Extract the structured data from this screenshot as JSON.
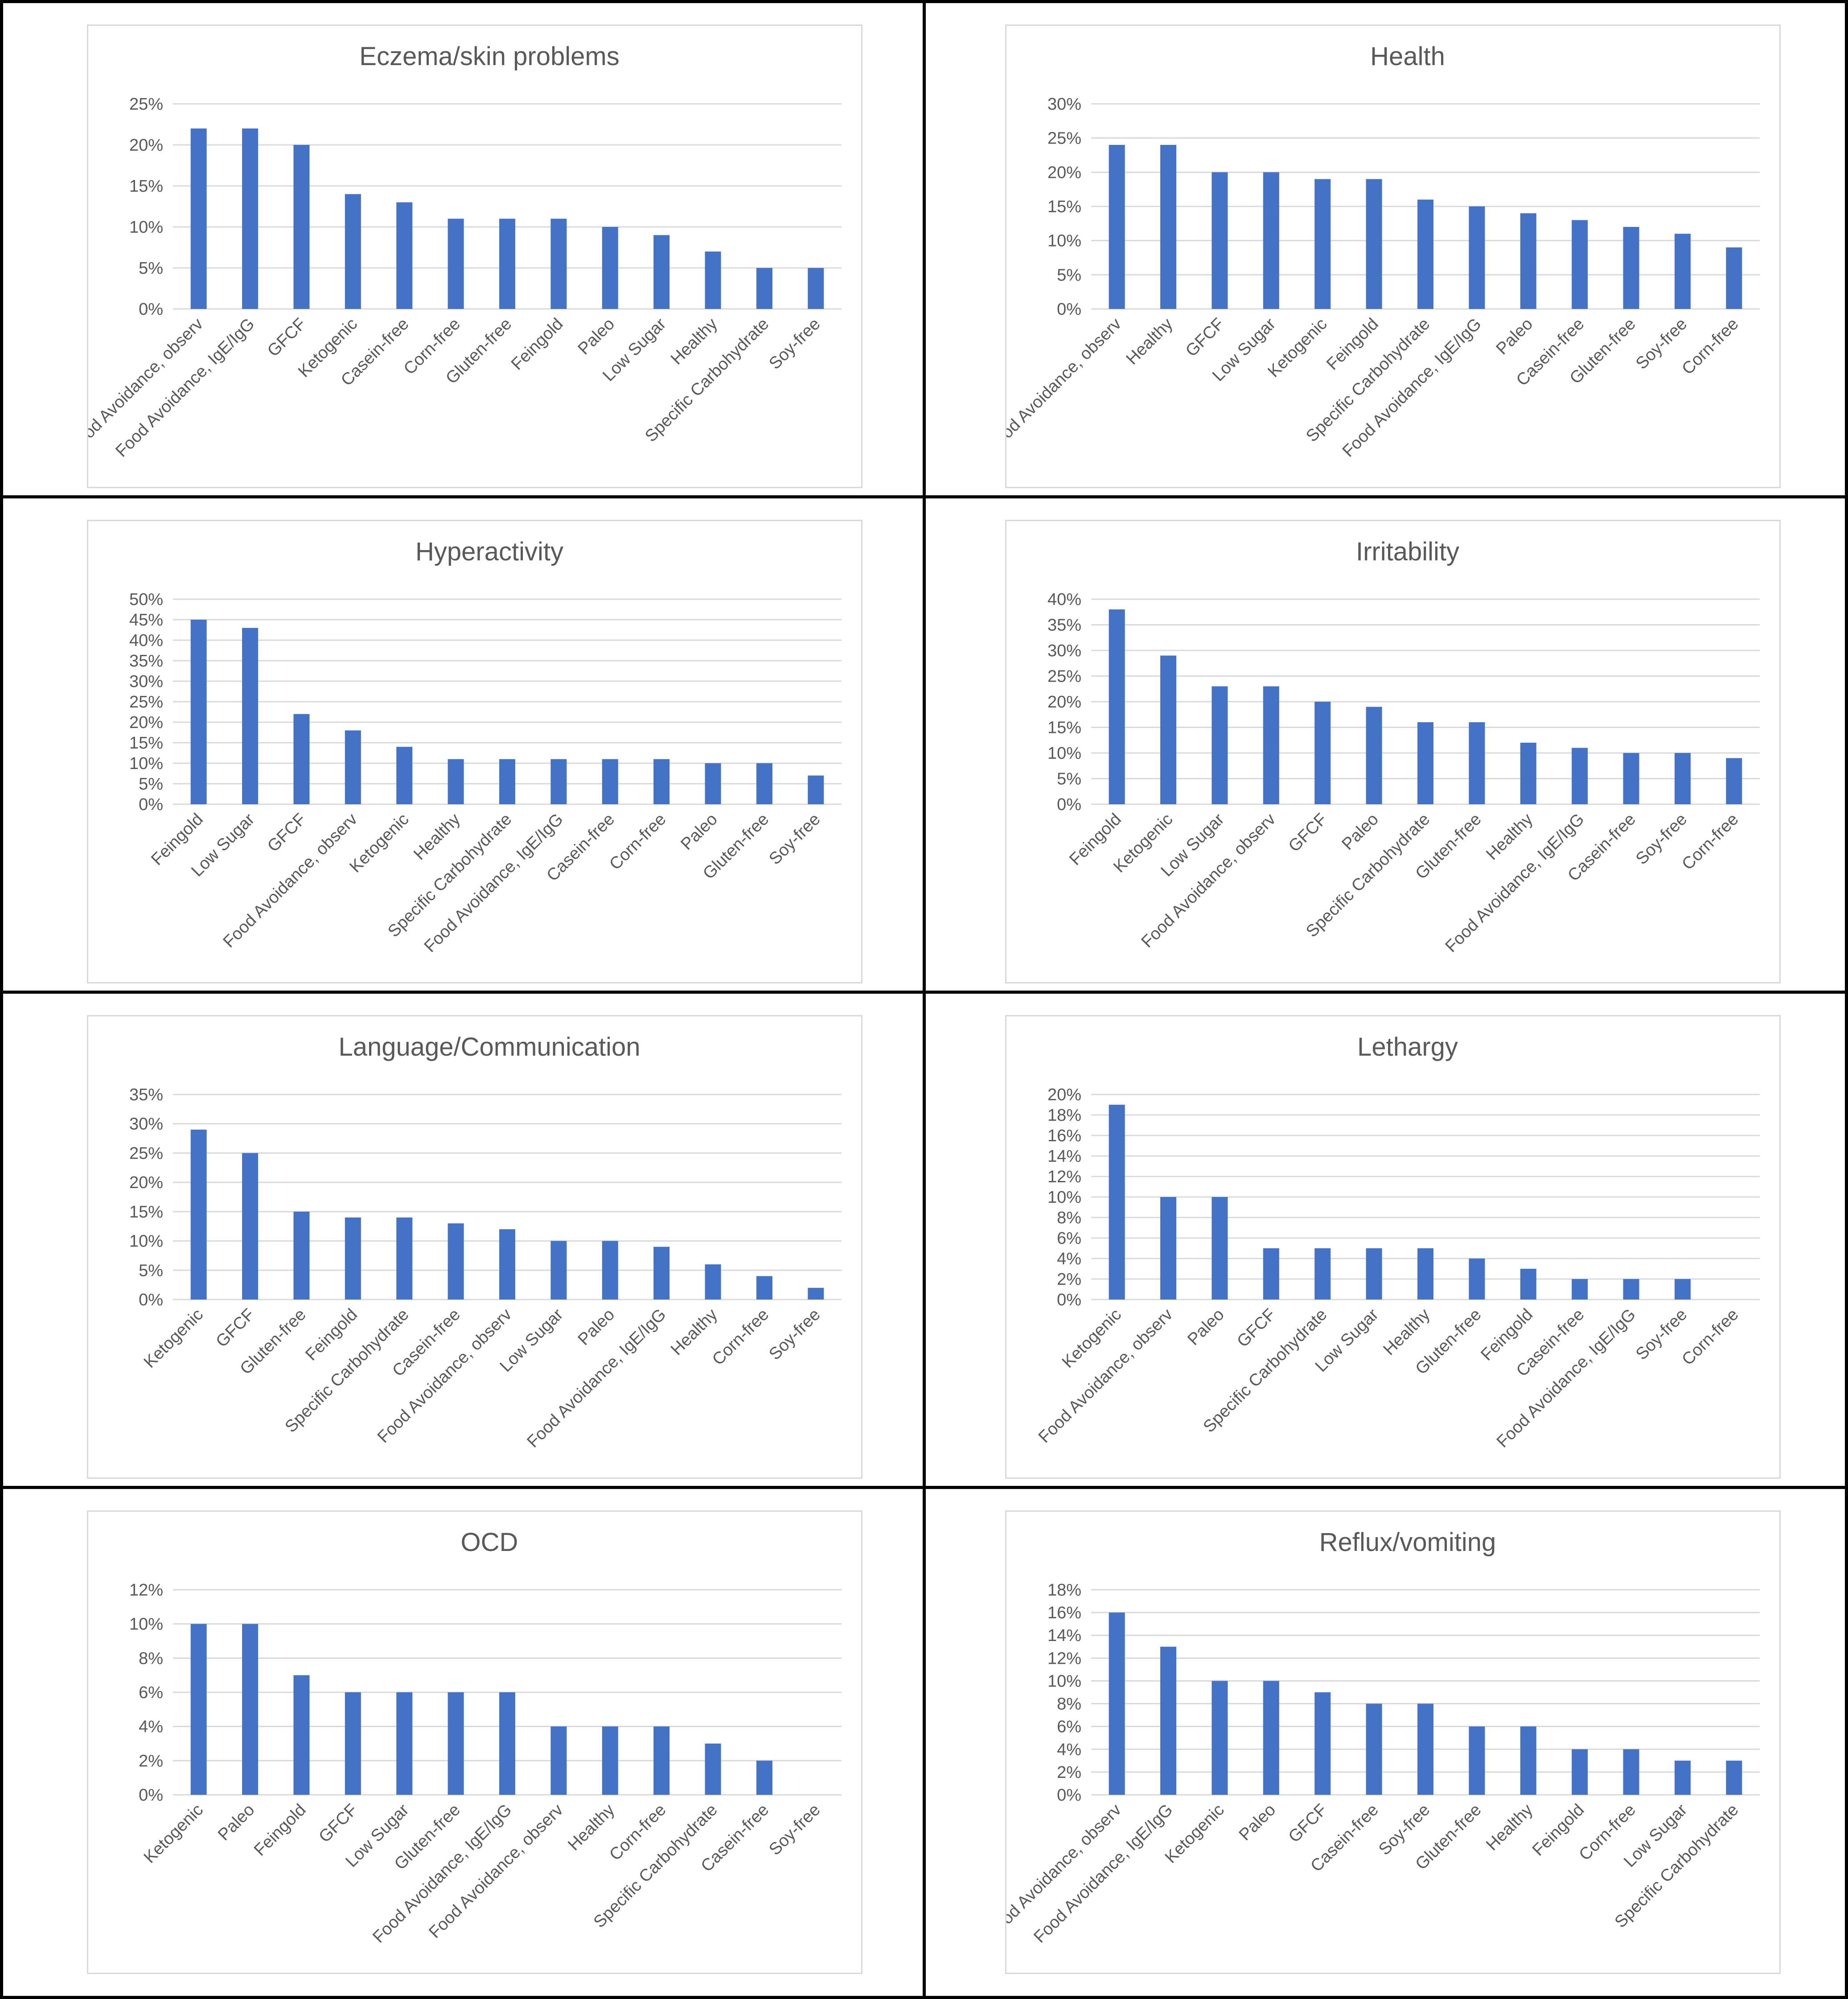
{
  "colors": {
    "bar": "#4472c4",
    "gridline": "#d9d9d9",
    "text": "#595959",
    "frame": "#000000"
  },
  "chart_data": [
    {
      "type": "bar",
      "title": "Eczema/skin problems",
      "categories": [
        "Food Avoidance, observ",
        "Food Avoidance, IgE/IgG",
        "GFCF",
        "Ketogenic",
        "Casein-free",
        "Corn-free",
        "Gluten-free",
        "Feingold",
        "Paleo",
        "Low Sugar",
        "Healthy",
        "Specific Carbohydrate",
        "Soy-free"
      ],
      "values": [
        22,
        22,
        20,
        14,
        13,
        11,
        11,
        11,
        10,
        9,
        7,
        5,
        5
      ],
      "yticks": [
        "0%",
        "5%",
        "10%",
        "15%",
        "20%",
        "25%"
      ],
      "ylim": [
        0,
        25
      ],
      "ystep": 5,
      "grid": true,
      "legend": "none"
    },
    {
      "type": "bar",
      "title": "Health",
      "categories": [
        "Food Avoidance, observ",
        "Healthy",
        "GFCF",
        "Low Sugar",
        "Ketogenic",
        "Feingold",
        "Specific Carbohydrate",
        "Food Avoidance, IgE/IgG",
        "Paleo",
        "Casein-free",
        "Gluten-free",
        "Soy-free",
        "Corn-free"
      ],
      "values": [
        24,
        24,
        20,
        20,
        19,
        19,
        16,
        15,
        14,
        13,
        12,
        11,
        9
      ],
      "yticks": [
        "0%",
        "5%",
        "10%",
        "15%",
        "20%",
        "25%",
        "30%"
      ],
      "ylim": [
        0,
        30
      ],
      "ystep": 5,
      "grid": true,
      "legend": "none"
    },
    {
      "type": "bar",
      "title": "Hyperactivity",
      "categories": [
        "Feingold",
        "Low Sugar",
        "GFCF",
        "Food Avoidance, observ",
        "Ketogenic",
        "Healthy",
        "Specific Carbohydrate",
        "Food Avoidance, IgE/IgG",
        "Casein-free",
        "Corn-free",
        "Paleo",
        "Gluten-free",
        "Soy-free"
      ],
      "values": [
        45,
        43,
        22,
        18,
        14,
        11,
        11,
        11,
        11,
        11,
        10,
        10,
        7
      ],
      "yticks": [
        "0%",
        "5%",
        "10%",
        "15%",
        "20%",
        "25%",
        "30%",
        "35%",
        "40%",
        "45%",
        "50%"
      ],
      "ylim": [
        0,
        50
      ],
      "ystep": 5,
      "grid": true,
      "legend": "none"
    },
    {
      "type": "bar",
      "title": "Irritability",
      "categories": [
        "Feingold",
        "Ketogenic",
        "Low Sugar",
        "Food Avoidance, observ",
        "GFCF",
        "Paleo",
        "Specific Carbohydrate",
        "Gluten-free",
        "Healthy",
        "Food Avoidance, IgE/IgG",
        "Casein-free",
        "Soy-free",
        "Corn-free"
      ],
      "values": [
        38,
        29,
        23,
        23,
        20,
        19,
        16,
        16,
        12,
        11,
        10,
        10,
        9
      ],
      "yticks": [
        "0%",
        "5%",
        "10%",
        "15%",
        "20%",
        "25%",
        "30%",
        "35%",
        "40%"
      ],
      "ylim": [
        0,
        40
      ],
      "ystep": 5,
      "grid": true,
      "legend": "none"
    },
    {
      "type": "bar",
      "title": "Language/Communication",
      "categories": [
        "Ketogenic",
        "GFCF",
        "Gluten-free",
        "Feingold",
        "Specific Carbohydrate",
        "Casein-free",
        "Food Avoidance, observ",
        "Low Sugar",
        "Paleo",
        "Food Avoidance, IgE/IgG",
        "Healthy",
        "Corn-free",
        "Soy-free"
      ],
      "values": [
        29,
        25,
        15,
        14,
        14,
        13,
        12,
        10,
        10,
        9,
        6,
        4,
        2
      ],
      "yticks": [
        "0%",
        "5%",
        "10%",
        "15%",
        "20%",
        "25%",
        "30%",
        "35%"
      ],
      "ylim": [
        0,
        35
      ],
      "ystep": 5,
      "grid": true,
      "legend": "none"
    },
    {
      "type": "bar",
      "title": "Lethargy",
      "categories": [
        "Ketogenic",
        "Food Avoidance, observ",
        "Paleo",
        "GFCF",
        "Specific Carbohydrate",
        "Low Sugar",
        "Healthy",
        "Gluten-free",
        "Feingold",
        "Casein-free",
        "Food Avoidance, IgE/IgG",
        "Soy-free",
        "Corn-free"
      ],
      "values": [
        19,
        10,
        10,
        5,
        5,
        5,
        5,
        4,
        3,
        2,
        2,
        2,
        0
      ],
      "yticks": [
        "0%",
        "2%",
        "4%",
        "6%",
        "8%",
        "10%",
        "12%",
        "14%",
        "16%",
        "18%",
        "20%"
      ],
      "ylim": [
        0,
        20
      ],
      "ystep": 2,
      "grid": true,
      "legend": "none"
    },
    {
      "type": "bar",
      "title": "OCD",
      "categories": [
        "Ketogenic",
        "Paleo",
        "Feingold",
        "GFCF",
        "Low Sugar",
        "Gluten-free",
        "Food Avoidance, IgE/IgG",
        "Food Avoidance, observ",
        "Healthy",
        "Corn-free",
        "Specific Carbohydrate",
        "Casein-free",
        "Soy-free"
      ],
      "values": [
        10,
        10,
        7,
        6,
        6,
        6,
        6,
        4,
        4,
        4,
        3,
        2,
        0
      ],
      "yticks": [
        "0%",
        "2%",
        "4%",
        "6%",
        "8%",
        "10%",
        "12%"
      ],
      "ylim": [
        0,
        12
      ],
      "ystep": 2,
      "grid": true,
      "legend": "none"
    },
    {
      "type": "bar",
      "title": "Reflux/vomiting",
      "categories": [
        "Food Avoidance, observ",
        "Food Avoidance, IgE/IgG",
        "Ketogenic",
        "Paleo",
        "GFCF",
        "Casein-free",
        "Soy-free",
        "Gluten-free",
        "Healthy",
        "Feingold",
        "Corn-free",
        "Low Sugar",
        "Specific Carbohydrate"
      ],
      "values": [
        16,
        13,
        10,
        10,
        9,
        8,
        8,
        6,
        6,
        4,
        4,
        3,
        3
      ],
      "yticks": [
        "0%",
        "2%",
        "4%",
        "6%",
        "8%",
        "10%",
        "12%",
        "14%",
        "16%",
        "18%"
      ],
      "ylim": [
        0,
        18
      ],
      "ystep": 2,
      "grid": true,
      "legend": "none"
    }
  ]
}
